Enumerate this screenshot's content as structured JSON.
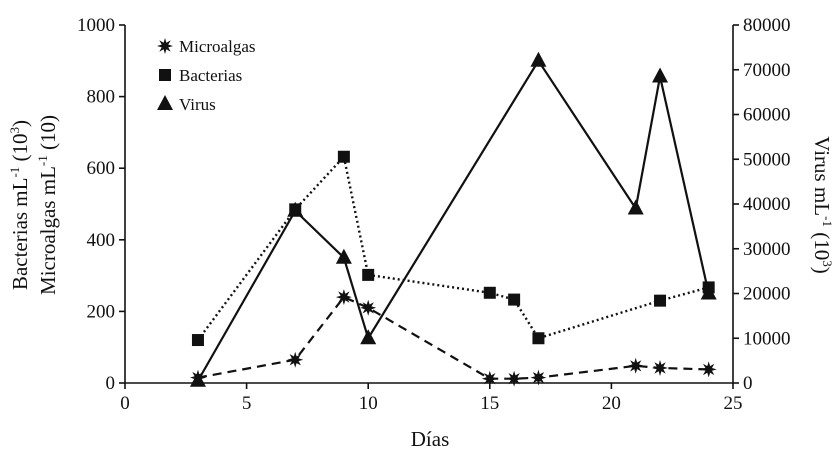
{
  "chart_data": {
    "type": "line",
    "xlabel": "Días",
    "ylabel_left_line1": "Bacterias mL",
    "ylabel_left_sup1": "-1",
    "ylabel_left_mid1": " (10",
    "ylabel_left_sup2": "3",
    "ylabel_left_end1": ")",
    "ylabel_left_line2": "Microalgas mL",
    "ylabel_left_sup3": "-1",
    "ylabel_left_end2": " (10)",
    "ylabel_right_main": "Virus mL",
    "ylabel_right_sup1": "-1",
    "ylabel_right_mid": " (10",
    "ylabel_right_sup2": "3",
    "ylabel_right_end": ")",
    "xlim": [
      0,
      25
    ],
    "ylim_left": [
      0,
      1000
    ],
    "ylim_right": [
      0,
      80000
    ],
    "x_ticks": [
      0,
      5,
      10,
      15,
      20,
      25
    ],
    "y_left_ticks": [
      0,
      200,
      400,
      600,
      800,
      1000
    ],
    "y_right_ticks": [
      0,
      10000,
      20000,
      30000,
      40000,
      50000,
      60000,
      70000,
      80000
    ],
    "legend_position": "top-left",
    "series": [
      {
        "name": "Microalgas",
        "axis": "left",
        "marker": "star",
        "line_style": "dashed",
        "x": [
          3,
          7,
          9,
          10,
          15,
          16,
          17,
          21,
          22,
          24
        ],
        "y": [
          15,
          65,
          240,
          210,
          12,
          12,
          15,
          48,
          42,
          38
        ]
      },
      {
        "name": "Bacterias",
        "axis": "left",
        "marker": "square",
        "line_style": "dotted",
        "x": [
          3,
          7,
          9,
          10,
          15,
          16,
          17,
          22,
          24
        ],
        "y": [
          120,
          485,
          632,
          302,
          252,
          233,
          125,
          230,
          267
        ]
      },
      {
        "name": "Virus",
        "axis": "right",
        "marker": "triangle",
        "line_style": "solid",
        "x": [
          3,
          7,
          9,
          10,
          17,
          21,
          22,
          24
        ],
        "y": [
          500,
          38500,
          28000,
          10000,
          72000,
          39000,
          68500,
          20000
        ]
      }
    ]
  }
}
